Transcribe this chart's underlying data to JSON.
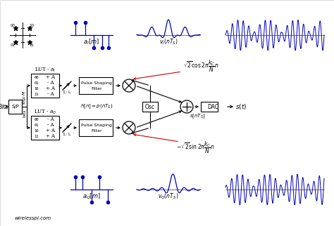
{
  "bg_color": "#ffffff",
  "line_color": "#000000",
  "blue_color": "#0000bb",
  "red_color": "#cc0000",
  "watermark": "wirelesspi.com",
  "lut_I_entries": [
    [
      "00",
      "+ A"
    ],
    [
      "01",
      "- A"
    ],
    [
      "10",
      "+ A"
    ],
    [
      "11",
      "- A"
    ]
  ],
  "lut_Q_entries": [
    [
      "00",
      "- A"
    ],
    [
      "01",
      "- A"
    ],
    [
      "10",
      "+ A"
    ],
    [
      "11",
      "+ A"
    ]
  ]
}
